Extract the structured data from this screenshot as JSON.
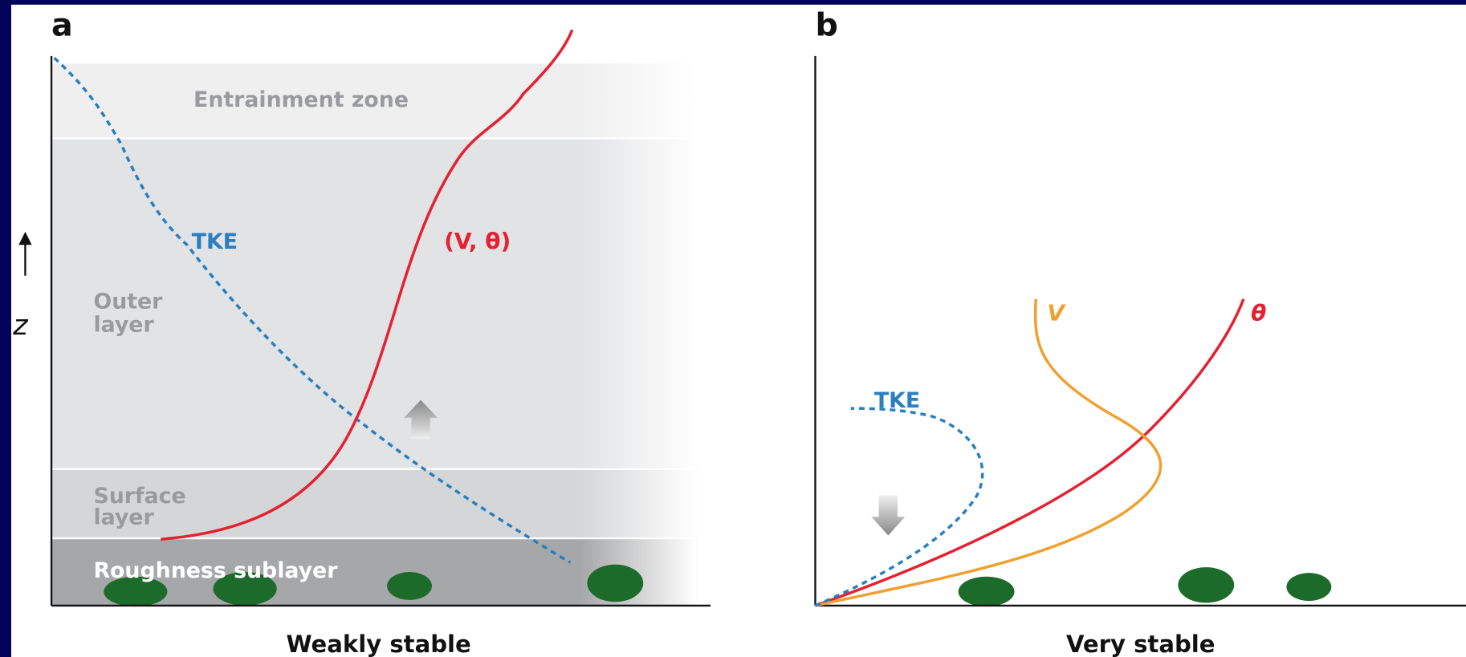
{
  "panel_a": {
    "label": "a",
    "caption": "Weakly stable",
    "zones": [
      "Entrainment zone",
      "Outer",
      "layer",
      "Surface",
      "layer",
      "Roughness sublayer"
    ],
    "curves": [
      "TKE",
      "(V, θ)"
    ],
    "axis": "z"
  },
  "panel_b": {
    "label": "b",
    "caption": "Very stable",
    "curves": [
      "TKE",
      "V",
      "θ"
    ]
  }
}
